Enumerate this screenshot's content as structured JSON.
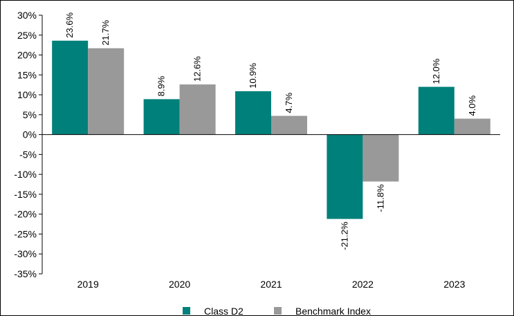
{
  "chart_data": {
    "type": "bar",
    "categories": [
      "2019",
      "2020",
      "2021",
      "2022",
      "2023"
    ],
    "series": [
      {
        "name": "Class D2",
        "color": "#00807a",
        "values": [
          23.6,
          8.9,
          10.9,
          -21.2,
          12.0
        ],
        "labels": [
          "23.6%",
          "8.9%",
          "10.9%",
          "-21.2%",
          "12.0%"
        ]
      },
      {
        "name": "Benchmark Index",
        "color": "#999999",
        "values": [
          21.7,
          12.6,
          4.7,
          -11.8,
          4.0
        ],
        "labels": [
          "21.7%",
          "12.6%",
          "4.7%",
          "-11.8%",
          "4.0%"
        ]
      }
    ],
    "ylim": [
      -35,
      30
    ],
    "yticks": [
      30,
      25,
      20,
      15,
      10,
      5,
      0,
      -5,
      -10,
      -15,
      -20,
      -25,
      -30,
      -35
    ],
    "ytick_labels": [
      "30%",
      "25%",
      "20%",
      "15%",
      "10%",
      "5%",
      "0%",
      "-5%",
      "-10%",
      "-15%",
      "-20%",
      "-25%",
      "-30%",
      "-35%"
    ],
    "grid": false,
    "legend_position": "bottom-center",
    "title": "",
    "xlabel": "",
    "ylabel": ""
  }
}
